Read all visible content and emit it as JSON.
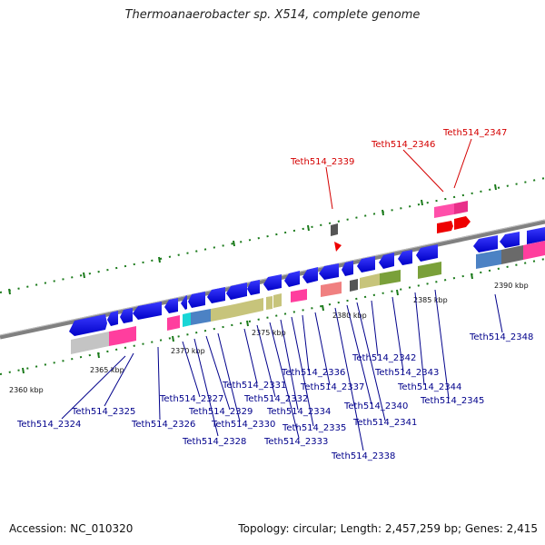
{
  "title": "Thermoanaerobacter sp. X514, complete genome",
  "accession": "Accession: NC_010320",
  "summary": "Topology: circular; Length: 2,457,259 bp; Genes: 2,415",
  "scale_labels": [
    "2360 kbp",
    "2365 kbp",
    "2370 kbp",
    "2375 kbp",
    "2380 kbp",
    "2385 kbp",
    "2390 kbp"
  ],
  "genes": {
    "g2324": "Teth514_2324",
    "g2325": "Teth514_2325",
    "g2326": "Teth514_2326",
    "g2327": "Teth514_2327",
    "g2328": "Teth514_2328",
    "g2329": "Teth514_2329",
    "g2330": "Teth514_2330",
    "g2331": "Teth514_2331",
    "g2332": "Teth514_2332",
    "g2333": "Teth514_2333",
    "g2334": "Teth514_2334",
    "g2335": "Teth514_2335",
    "g2336": "Teth514_2336",
    "g2337": "Teth514_2337",
    "g2338": "Teth514_2338",
    "g2339": "Teth514_2339",
    "g2340": "Teth514_2340",
    "g2341": "Teth514_2341",
    "g2342": "Teth514_2342",
    "g2343": "Teth514_2343",
    "g2344": "Teth514_2344",
    "g2345": "Teth514_2345",
    "g2346": "Teth514_2346",
    "g2347": "Teth514_2347",
    "g2348": "Teth514_2348"
  },
  "colors": {
    "backbone": "#808080",
    "protein_gene": "#0000e6",
    "rna_gene": "#ff0000",
    "label_normal": "#00008b",
    "label_highlight": "#d40000",
    "tick": "#1a7a1a"
  }
}
